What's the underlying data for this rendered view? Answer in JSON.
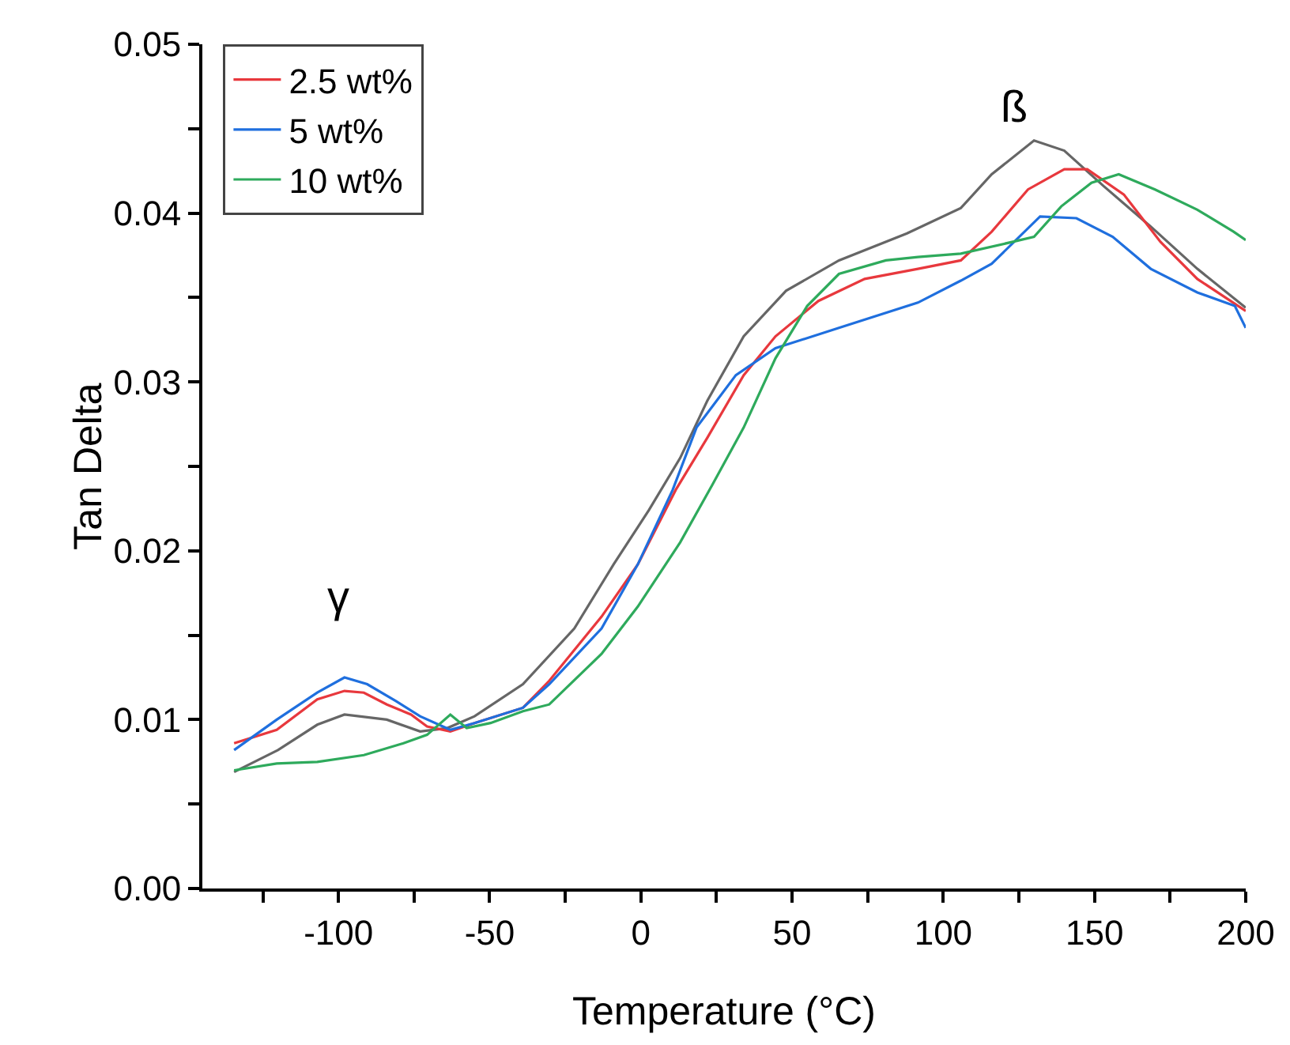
{
  "chart_data": {
    "type": "line",
    "xlabel": "Temperature (°C)",
    "ylabel": "Tan Delta",
    "xlim": [
      -145,
      200
    ],
    "xticks": [
      {
        "value": -125,
        "label": null
      },
      -100,
      {
        "value": -75,
        "label": null
      },
      -50,
      {
        "value": -25,
        "label": null
      },
      0,
      {
        "value": 25,
        "label": null
      },
      50,
      {
        "value": 75,
        "label": null
      },
      100,
      {
        "value": 125,
        "label": null
      },
      150,
      {
        "value": 175,
        "label": null
      },
      200
    ],
    "ylim": [
      0,
      0.05
    ],
    "yticks": [
      {
        "value": 0,
        "label": "0.00"
      },
      {
        "value": 0.005,
        "label": null
      },
      {
        "value": 0.01,
        "label": "0.01"
      },
      {
        "value": 0.015,
        "label": null
      },
      {
        "value": 0.02,
        "label": "0.02"
      },
      {
        "value": 0.025,
        "label": null
      },
      {
        "value": 0.03,
        "label": "0.03"
      },
      {
        "value": 0.035,
        "label": null
      },
      {
        "value": 0.04,
        "label": "0.04"
      },
      {
        "value": 0.045,
        "label": null
      },
      {
        "value": 0.05,
        "label": "0.05"
      }
    ],
    "grid": false,
    "legend": "top left",
    "marker": "none",
    "line_style": "solid",
    "series": [
      {
        "color": "#666666",
        "x": [
          -134.5,
          -120,
          -107,
          -98,
          -84,
          -73,
          -64,
          -55,
          -39,
          -22,
          -9,
          2.6,
          13,
          22,
          34,
          48,
          65.5,
          88,
          105.8,
          116,
          130,
          140,
          153,
          168.6,
          184,
          200
        ],
        "values": [
          0.0069,
          0.0082,
          0.0097,
          0.0103,
          0.01,
          0.0093,
          0.0095,
          0.0102,
          0.0121,
          0.0154,
          0.0192,
          0.0224,
          0.0255,
          0.0289,
          0.0327,
          0.0354,
          0.0372,
          0.0388,
          0.0403,
          0.0423,
          0.0443,
          0.0437,
          0.0416,
          0.0392,
          0.0367,
          0.0344
        ]
      },
      {
        "name": "2.5 wt%",
        "color": "#e8383d",
        "x": [
          -134.5,
          -120.4,
          -107,
          -98,
          -91.6,
          -84,
          -76,
          -70.7,
          -63,
          -55,
          -39,
          -30.3,
          -13,
          -1,
          11.5,
          22,
          34,
          44.5,
          58.7,
          74,
          91.6,
          105.8,
          116,
          128,
          140,
          147.6,
          159.7,
          171.8,
          184,
          200
        ],
        "values": [
          0.0086,
          0.0094,
          0.0112,
          0.0117,
          0.0116,
          0.0109,
          0.0103,
          0.0096,
          0.0093,
          0.0098,
          0.0107,
          0.0123,
          0.0161,
          0.0192,
          0.0236,
          0.0267,
          0.0304,
          0.0327,
          0.0348,
          0.0361,
          0.0367,
          0.0372,
          0.0389,
          0.0414,
          0.0426,
          0.0426,
          0.0411,
          0.0383,
          0.0361,
          0.0342
        ]
      },
      {
        "name": "5 wt%",
        "color": "#1f6fde",
        "x": [
          -134.5,
          -120.4,
          -107,
          -98,
          -90.5,
          -81,
          -73,
          -63,
          -55,
          -39,
          -30.3,
          -13,
          -1,
          10.5,
          18.4,
          31.4,
          44.5,
          65.5,
          91.6,
          105.8,
          116,
          132,
          144,
          156,
          168.6,
          184,
          196.4,
          200
        ],
        "values": [
          0.0082,
          0.01,
          0.0116,
          0.0125,
          0.0121,
          0.0111,
          0.0102,
          0.0094,
          0.0098,
          0.0107,
          0.0121,
          0.0154,
          0.0192,
          0.0236,
          0.0273,
          0.0304,
          0.032,
          0.0332,
          0.0347,
          0.036,
          0.037,
          0.0398,
          0.0397,
          0.0386,
          0.0367,
          0.0353,
          0.0345,
          0.0332
        ]
      },
      {
        "name": "10 wt%",
        "color": "#2eaa5c",
        "x": [
          -134.5,
          -120.4,
          -107,
          -91.6,
          -78.5,
          -70.7,
          -63,
          -57.6,
          -49.7,
          -39,
          -30.3,
          -13,
          -1,
          13,
          23.6,
          34,
          44.5,
          55,
          65.5,
          81,
          91.6,
          105.8,
          123,
          130,
          139,
          149,
          158,
          170,
          184,
          196,
          200
        ],
        "values": [
          0.007,
          0.0074,
          0.0075,
          0.0079,
          0.0086,
          0.0091,
          0.0103,
          0.0095,
          0.0098,
          0.0105,
          0.0109,
          0.0139,
          0.0167,
          0.0205,
          0.0239,
          0.0273,
          0.0314,
          0.0345,
          0.0364,
          0.0372,
          0.0374,
          0.0376,
          0.0383,
          0.0386,
          0.0404,
          0.0418,
          0.0423,
          0.0414,
          0.0402,
          0.0389,
          0.0384
        ]
      }
    ],
    "annotations": [
      "γ",
      "ß"
    ]
  }
}
